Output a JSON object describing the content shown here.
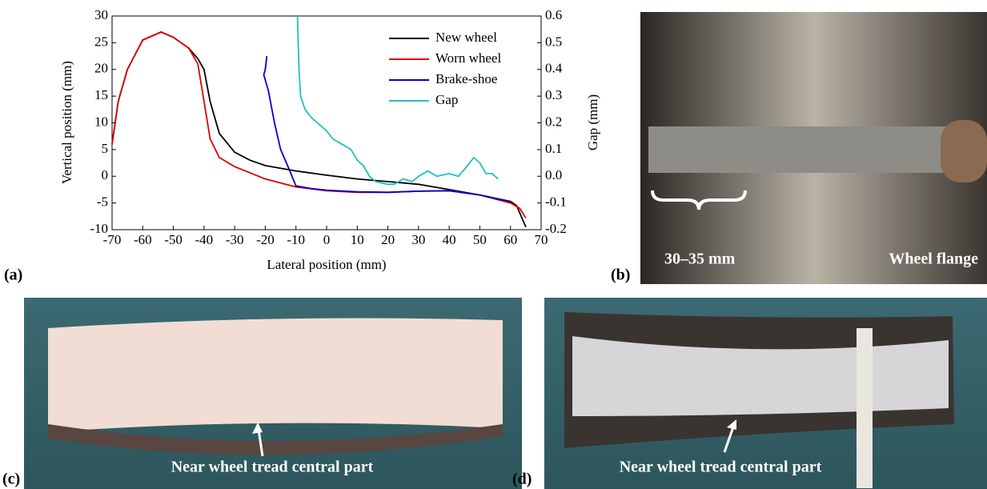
{
  "chart_data": {
    "type": "line",
    "xlabel": "Lateral position (mm)",
    "ylabel": "Vertical position (mm)",
    "y2label": "Gap (mm)",
    "xlim": [
      -70,
      70
    ],
    "xticks": [
      -70,
      -60,
      -50,
      -40,
      -30,
      -20,
      -10,
      0,
      10,
      20,
      30,
      40,
      50,
      60,
      70
    ],
    "ylim": [
      -10,
      30
    ],
    "yticks": [
      -10,
      -5,
      0,
      5,
      10,
      15,
      20,
      25,
      30
    ],
    "y2lim": [
      -0.2,
      0.6
    ],
    "y2ticks": [
      -0.2,
      -0.1,
      {
        "value": 0,
        "label": "0.0"
      },
      0.1,
      0.2,
      0.3,
      0.4,
      0.5,
      0.6
    ],
    "legend": "upper right",
    "series": [
      {
        "name": "New wheel",
        "color": "#000000",
        "x": [
          -70,
          -68,
          -65,
          -60,
          -54,
          -50,
          -45,
          -42,
          -40,
          -38,
          -35,
          -30,
          -25,
          -20,
          -10,
          0,
          10,
          20,
          30,
          40,
          50,
          60,
          62,
          65
        ],
        "values": [
          6,
          14,
          20,
          25.5,
          27,
          26,
          24,
          22,
          20,
          14,
          8,
          4.5,
          3,
          2,
          1,
          0.2,
          -0.5,
          -1,
          -1.5,
          -2.5,
          -3.5,
          -4.7,
          -5.5,
          -9.5
        ]
      },
      {
        "name": "Worn wheel",
        "color": "#e00000",
        "x": [
          -70,
          -68,
          -65,
          -60,
          -54,
          -50,
          -45,
          -42,
          -40,
          -38,
          -35,
          -30,
          -20,
          -10,
          0,
          10,
          20,
          30,
          40,
          50,
          60,
          63,
          65
        ],
        "values": [
          6,
          14,
          20,
          25.5,
          27,
          26,
          24,
          21,
          14,
          7,
          3.5,
          1.8,
          -0.5,
          -2,
          -2.7,
          -3,
          -3,
          -2.8,
          -2.7,
          -3.5,
          -5,
          -6,
          -7.8
        ]
      },
      {
        "name": "Brake-shoe",
        "color": "#0000cc",
        "x": [
          -19.5,
          -20,
          -20.5,
          -19,
          -17,
          -15,
          -12,
          -10,
          -5,
          0,
          10,
          20,
          30,
          40,
          50,
          60
        ],
        "values": [
          22.5,
          20,
          19,
          16,
          10,
          5,
          1,
          -1.8,
          -2.3,
          -2.6,
          -2.9,
          -3,
          -2.8,
          -2.7,
          -3.5,
          -4.8
        ]
      },
      {
        "name": "Gap",
        "color": "#20c0c0",
        "axis": "y2",
        "x": [
          -9.5,
          -9,
          -8.5,
          -7,
          -5,
          0,
          2,
          5,
          8,
          10,
          12,
          14,
          16,
          20,
          22,
          25,
          28,
          30,
          33,
          36,
          40,
          43,
          46,
          48,
          50,
          52,
          54,
          56
        ],
        "values": [
          0.6,
          0.4,
          0.3,
          0.25,
          0.22,
          0.17,
          0.14,
          0.12,
          0.1,
          0.06,
          0.04,
          0,
          -0.02,
          -0.03,
          -0.03,
          -0.01,
          -0.02,
          0,
          0.02,
          0,
          0.01,
          0,
          0.04,
          0.07,
          0.05,
          0.01,
          0.01,
          -0.01
        ]
      }
    ]
  },
  "panels": {
    "a": "(a)",
    "b": "(b)",
    "c": "(c)",
    "d": "(d)"
  },
  "annotations": {
    "b_width": "30–35 mm",
    "b_flange": "Wheel flange",
    "c_tread": "Near wheel tread central part",
    "d_tread": "Near wheel tread central part"
  }
}
